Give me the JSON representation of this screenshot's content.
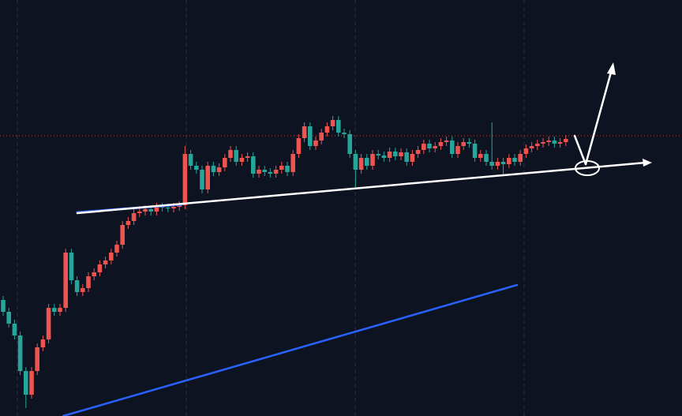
{
  "chart_data": {
    "type": "candlestick",
    "ylim": [
      0,
      527
    ],
    "up_color": "#ef5350",
    "down_color": "#26a69a",
    "price_line": 355,
    "price_line_color": "#ef5350",
    "ohlc": [
      [
        147,
        152,
        127,
        132
      ],
      [
        132,
        137,
        112,
        117
      ],
      [
        117,
        122,
        97,
        102
      ],
      [
        102,
        107,
        52,
        57
      ],
      [
        57,
        62,
        10,
        27
      ],
      [
        27,
        62,
        22,
        57
      ],
      [
        57,
        92,
        52,
        87
      ],
      [
        87,
        102,
        82,
        97
      ],
      [
        97,
        142,
        92,
        137
      ],
      [
        137,
        142,
        127,
        132
      ],
      [
        132,
        142,
        127,
        137
      ],
      [
        137,
        212,
        132,
        207
      ],
      [
        207,
        212,
        167,
        172
      ],
      [
        172,
        177,
        152,
        157
      ],
      [
        157,
        167,
        152,
        162
      ],
      [
        162,
        182,
        157,
        177
      ],
      [
        177,
        187,
        172,
        182
      ],
      [
        182,
        197,
        177,
        192
      ],
      [
        192,
        202,
        187,
        197
      ],
      [
        197,
        212,
        192,
        207
      ],
      [
        207,
        222,
        202,
        217
      ],
      [
        217,
        247,
        212,
        242
      ],
      [
        242,
        252,
        237,
        247
      ],
      [
        247,
        262,
        242,
        257
      ],
      [
        257,
        266,
        252,
        259
      ],
      [
        259,
        267,
        254,
        262
      ],
      [
        262,
        267,
        254,
        259
      ],
      [
        259,
        270,
        254,
        265
      ],
      [
        265,
        270,
        259,
        264
      ],
      [
        264,
        269,
        258,
        263
      ],
      [
        263,
        270,
        258,
        265
      ],
      [
        265,
        272,
        260,
        267
      ],
      [
        267,
        342,
        262,
        332
      ],
      [
        332,
        337,
        312,
        317
      ],
      [
        317,
        322,
        307,
        312
      ],
      [
        312,
        317,
        282,
        287
      ],
      [
        287,
        322,
        282,
        317
      ],
      [
        317,
        322,
        304,
        309
      ],
      [
        309,
        320,
        304,
        315
      ],
      [
        315,
        332,
        310,
        327
      ],
      [
        327,
        342,
        322,
        337
      ],
      [
        337,
        342,
        317,
        322
      ],
      [
        322,
        332,
        317,
        327
      ],
      [
        327,
        334,
        322,
        329
      ],
      [
        329,
        334,
        302,
        307
      ],
      [
        307,
        317,
        302,
        312
      ],
      [
        312,
        317,
        304,
        309
      ],
      [
        309,
        314,
        302,
        307
      ],
      [
        307,
        317,
        302,
        312
      ],
      [
        312,
        322,
        307,
        317
      ],
      [
        317,
        322,
        304,
        309
      ],
      [
        309,
        337,
        304,
        332
      ],
      [
        332,
        357,
        327,
        352
      ],
      [
        352,
        372,
        347,
        367
      ],
      [
        367,
        372,
        337,
        342
      ],
      [
        342,
        354,
        337,
        349
      ],
      [
        349,
        364,
        344,
        359
      ],
      [
        359,
        372,
        354,
        367
      ],
      [
        367,
        380,
        362,
        375
      ],
      [
        375,
        380,
        354,
        359
      ],
      [
        359,
        364,
        352,
        357
      ],
      [
        357,
        362,
        327,
        332
      ],
      [
        332,
        337,
        290,
        312
      ],
      [
        312,
        332,
        307,
        327
      ],
      [
        327,
        332,
        312,
        317
      ],
      [
        317,
        337,
        312,
        332
      ],
      [
        332,
        337,
        325,
        330
      ],
      [
        330,
        335,
        322,
        327
      ],
      [
        327,
        340,
        322,
        335
      ],
      [
        335,
        340,
        324,
        329
      ],
      [
        329,
        339,
        324,
        334
      ],
      [
        334,
        339,
        317,
        322
      ],
      [
        322,
        337,
        317,
        332
      ],
      [
        332,
        342,
        327,
        337
      ],
      [
        337,
        350,
        332,
        345
      ],
      [
        345,
        350,
        334,
        339
      ],
      [
        339,
        347,
        334,
        342
      ],
      [
        342,
        352,
        337,
        347
      ],
      [
        347,
        354,
        342,
        349
      ],
      [
        349,
        354,
        327,
        332
      ],
      [
        332,
        347,
        327,
        342
      ],
      [
        342,
        352,
        337,
        347
      ],
      [
        347,
        352,
        340,
        345
      ],
      [
        345,
        350,
        322,
        327
      ],
      [
        327,
        337,
        322,
        332
      ],
      [
        332,
        337,
        317,
        322
      ],
      [
        322,
        372,
        312,
        317
      ],
      [
        317,
        327,
        312,
        322
      ],
      [
        322,
        327,
        305,
        319
      ],
      [
        319,
        332,
        314,
        327
      ],
      [
        327,
        332,
        317,
        322
      ],
      [
        322,
        337,
        317,
        332
      ],
      [
        332,
        344,
        327,
        339
      ],
      [
        339,
        347,
        334,
        342
      ],
      [
        342,
        350,
        337,
        345
      ],
      [
        345,
        352,
        340,
        347
      ],
      [
        347,
        354,
        342,
        349
      ],
      [
        349,
        354,
        340,
        345
      ],
      [
        345,
        352,
        340,
        347
      ],
      [
        347,
        356,
        342,
        351
      ]
    ]
  }
}
